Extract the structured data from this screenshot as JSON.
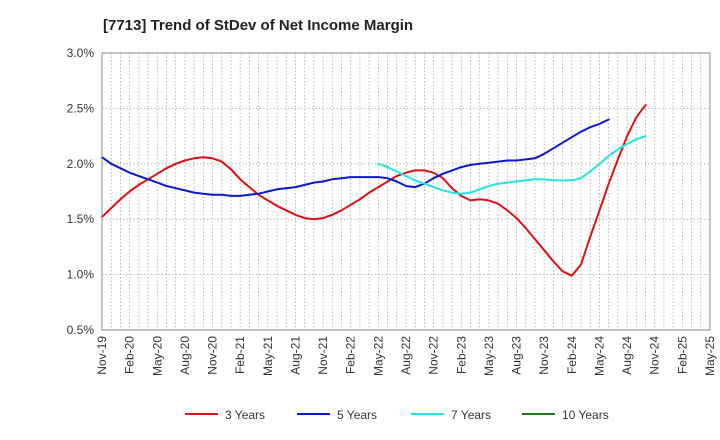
{
  "chart_data": {
    "type": "line",
    "title": "[7713]  Trend of StDev of Net Income Margin",
    "xlabel": "",
    "ylabel": "",
    "x_ticks": [
      "Nov-19",
      "Feb-20",
      "May-20",
      "Aug-20",
      "Nov-20",
      "Feb-21",
      "May-21",
      "Aug-21",
      "Nov-21",
      "Feb-22",
      "May-22",
      "Aug-22",
      "Nov-22",
      "Feb-23",
      "May-23",
      "Aug-23",
      "Nov-23",
      "Feb-24",
      "May-24",
      "Aug-24",
      "Nov-24",
      "Feb-25",
      "May-25"
    ],
    "y_ticks": [
      "0.5%",
      "1.0%",
      "1.5%",
      "2.0%",
      "2.5%",
      "3.0%"
    ],
    "ylim": [
      0.5,
      3.0
    ],
    "grid": true,
    "legend_position": "bottom",
    "series": [
      {
        "name": "3 Years",
        "color": "#dd1111",
        "points": [
          [
            "Nov-19",
            1.52
          ],
          [
            "Dec-19",
            1.6
          ],
          [
            "Jan-20",
            1.68
          ],
          [
            "Feb-20",
            1.75
          ],
          [
            "Mar-20",
            1.81
          ],
          [
            "Apr-20",
            1.86
          ],
          [
            "May-20",
            1.91
          ],
          [
            "Jun-20",
            1.96
          ],
          [
            "Jul-20",
            2.0
          ],
          [
            "Aug-20",
            2.03
          ],
          [
            "Sep-20",
            2.05
          ],
          [
            "Oct-20",
            2.06
          ],
          [
            "Nov-20",
            2.05
          ],
          [
            "Dec-20",
            2.02
          ],
          [
            "Jan-21",
            1.95
          ],
          [
            "Feb-21",
            1.86
          ],
          [
            "Mar-21",
            1.79
          ],
          [
            "Apr-21",
            1.72
          ],
          [
            "May-21",
            1.67
          ],
          [
            "Jun-21",
            1.62
          ],
          [
            "Jul-21",
            1.58
          ],
          [
            "Aug-21",
            1.54
          ],
          [
            "Sep-21",
            1.51
          ],
          [
            "Oct-21",
            1.5
          ],
          [
            "Nov-21",
            1.51
          ],
          [
            "Dec-21",
            1.54
          ],
          [
            "Jan-22",
            1.58
          ],
          [
            "Feb-22",
            1.63
          ],
          [
            "Mar-22",
            1.68
          ],
          [
            "Apr-22",
            1.74
          ],
          [
            "May-22",
            1.79
          ],
          [
            "Jun-22",
            1.84
          ],
          [
            "Jul-22",
            1.89
          ],
          [
            "Aug-22",
            1.92
          ],
          [
            "Sep-22",
            1.94
          ],
          [
            "Oct-22",
            1.94
          ],
          [
            "Nov-22",
            1.92
          ],
          [
            "Dec-22",
            1.87
          ],
          [
            "Jan-23",
            1.78
          ],
          [
            "Feb-23",
            1.71
          ],
          [
            "Mar-23",
            1.67
          ],
          [
            "Apr-23",
            1.68
          ],
          [
            "May-23",
            1.67
          ],
          [
            "Jun-23",
            1.64
          ],
          [
            "Jul-23",
            1.58
          ],
          [
            "Aug-23",
            1.51
          ],
          [
            "Sep-23",
            1.42
          ],
          [
            "Oct-23",
            1.32
          ],
          [
            "Nov-23",
            1.22
          ],
          [
            "Dec-23",
            1.12
          ],
          [
            "Jan-24",
            1.03
          ],
          [
            "Feb-24",
            0.99
          ],
          [
            "Mar-24",
            1.09
          ],
          [
            "Apr-24",
            1.34
          ],
          [
            "May-24",
            1.58
          ],
          [
            "Jun-24",
            1.82
          ],
          [
            "Jul-24",
            2.04
          ],
          [
            "Aug-24",
            2.25
          ],
          [
            "Sep-24",
            2.42
          ],
          [
            "Oct-24",
            2.53
          ]
        ]
      },
      {
        "name": "5 Years",
        "color": "#0a1acc",
        "points": [
          [
            "Nov-19",
            2.06
          ],
          [
            "Dec-19",
            2.0
          ],
          [
            "Jan-20",
            1.96
          ],
          [
            "Feb-20",
            1.92
          ],
          [
            "Mar-20",
            1.89
          ],
          [
            "Apr-20",
            1.86
          ],
          [
            "May-20",
            1.83
          ],
          [
            "Jun-20",
            1.8
          ],
          [
            "Jul-20",
            1.78
          ],
          [
            "Aug-20",
            1.76
          ],
          [
            "Sep-20",
            1.74
          ],
          [
            "Oct-20",
            1.73
          ],
          [
            "Nov-20",
            1.72
          ],
          [
            "Dec-20",
            1.72
          ],
          [
            "Jan-21",
            1.71
          ],
          [
            "Feb-21",
            1.71
          ],
          [
            "Mar-21",
            1.72
          ],
          [
            "Apr-21",
            1.73
          ],
          [
            "May-21",
            1.75
          ],
          [
            "Jun-21",
            1.77
          ],
          [
            "Jul-21",
            1.78
          ],
          [
            "Aug-21",
            1.79
          ],
          [
            "Sep-21",
            1.81
          ],
          [
            "Oct-21",
            1.83
          ],
          [
            "Nov-21",
            1.84
          ],
          [
            "Dec-21",
            1.86
          ],
          [
            "Jan-22",
            1.87
          ],
          [
            "Feb-22",
            1.88
          ],
          [
            "Mar-22",
            1.88
          ],
          [
            "Apr-22",
            1.88
          ],
          [
            "May-22",
            1.88
          ],
          [
            "Jun-22",
            1.87
          ],
          [
            "Jul-22",
            1.84
          ],
          [
            "Aug-22",
            1.8
          ],
          [
            "Sep-22",
            1.79
          ],
          [
            "Oct-22",
            1.82
          ],
          [
            "Nov-22",
            1.87
          ],
          [
            "Dec-22",
            1.91
          ],
          [
            "Jan-23",
            1.94
          ],
          [
            "Feb-23",
            1.97
          ],
          [
            "Mar-23",
            1.99
          ],
          [
            "Apr-23",
            2.0
          ],
          [
            "May-23",
            2.01
          ],
          [
            "Jun-23",
            2.02
          ],
          [
            "Jul-23",
            2.03
          ],
          [
            "Aug-23",
            2.03
          ],
          [
            "Sep-23",
            2.04
          ],
          [
            "Oct-23",
            2.05
          ],
          [
            "Nov-23",
            2.09
          ],
          [
            "Dec-23",
            2.14
          ],
          [
            "Jan-24",
            2.19
          ],
          [
            "Feb-24",
            2.24
          ],
          [
            "Mar-24",
            2.29
          ],
          [
            "Apr-24",
            2.33
          ],
          [
            "May-24",
            2.36
          ],
          [
            "Jun-24",
            2.4
          ]
        ]
      },
      {
        "name": "7 Years",
        "color": "#22e5e5",
        "points": [
          [
            "May-22",
            2.0
          ],
          [
            "Jun-22",
            1.97
          ],
          [
            "Jul-22",
            1.93
          ],
          [
            "Aug-22",
            1.89
          ],
          [
            "Sep-22",
            1.85
          ],
          [
            "Oct-22",
            1.82
          ],
          [
            "Nov-22",
            1.79
          ],
          [
            "Dec-22",
            1.76
          ],
          [
            "Jan-23",
            1.74
          ],
          [
            "Feb-23",
            1.73
          ],
          [
            "Mar-23",
            1.74
          ],
          [
            "Apr-23",
            1.77
          ],
          [
            "May-23",
            1.8
          ],
          [
            "Jun-23",
            1.82
          ],
          [
            "Jul-23",
            1.83
          ],
          [
            "Aug-23",
            1.84
          ],
          [
            "Sep-23",
            1.85
          ],
          [
            "Oct-23",
            1.86
          ],
          [
            "Nov-23",
            1.86
          ],
          [
            "Dec-23",
            1.85
          ],
          [
            "Jan-24",
            1.85
          ],
          [
            "Feb-24",
            1.85
          ],
          [
            "Mar-24",
            1.87
          ],
          [
            "Apr-24",
            1.93
          ],
          [
            "May-24",
            2.0
          ],
          [
            "Jun-24",
            2.07
          ],
          [
            "Jul-24",
            2.13
          ],
          [
            "Aug-24",
            2.18
          ],
          [
            "Sep-24",
            2.22
          ],
          [
            "Oct-24",
            2.25
          ]
        ]
      },
      {
        "name": "10 Years",
        "color": "#1a7a1a",
        "points": []
      }
    ]
  }
}
